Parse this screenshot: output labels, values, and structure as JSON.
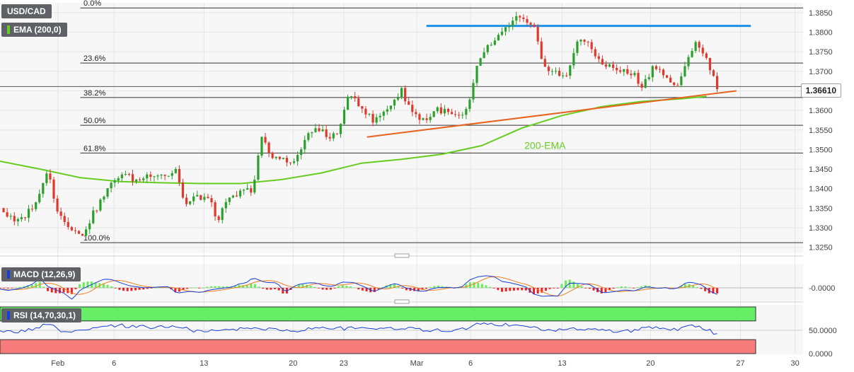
{
  "colors": {
    "background": "#ffffff",
    "panel_bg": "#f7f7f7",
    "grid": "#e6e6e6",
    "up": "#2ca02c",
    "down": "#e0392b",
    "ema": "#66cc22",
    "resistance": "#1e90e6",
    "trendline": "#e8641e",
    "fib": "#333333",
    "macd_line": "#1a3fd6",
    "signal_line": "#f08020",
    "hist_up": "#66ee55",
    "hist_down": "#ee2222",
    "rsi_line": "#1a3fd6",
    "rsi_overbought": "#66ee66",
    "rsi_oversold": "#f77b7b"
  },
  "legend": {
    "symbol": "USD/CAD",
    "ema": "EMA (200,0)",
    "macd": "MACD (12,26,9)",
    "rsi": "RSI (14,70,30,1)"
  },
  "current_price_label": "1.36610",
  "chart_data": [
    {
      "type": "candlestick",
      "title": "USD/CAD",
      "x_ticks": [
        "Feb",
        "6",
        "13",
        "20",
        "23",
        "Mar",
        "6",
        "13",
        "20",
        "27",
        "30"
      ],
      "y_ticks": [
        "1.3250",
        "1.3300",
        "1.3350",
        "1.3400",
        "1.3450",
        "1.3500",
        "1.3550",
        "1.3600",
        "1.3650",
        "1.3700",
        "1.3750",
        "1.3800",
        "1.3850"
      ],
      "ylim": [
        1.3235,
        1.3875
      ],
      "current_price": 1.3661,
      "fibonacci": [
        {
          "label": "0.0%",
          "value": 1.3862
        },
        {
          "label": "23.6%",
          "value": 1.3721
        },
        {
          "label": "38.2%",
          "value": 1.3633
        },
        {
          "label": "50.0%",
          "value": 1.3562
        },
        {
          "label": "61.8%",
          "value": 1.3491
        },
        {
          "label": "100.0%",
          "value": 1.3262
        }
      ],
      "resistance": {
        "value": 1.3816,
        "from": 0.531,
        "to": 0.935
      },
      "trendline": {
        "from": [
          0.457,
          1.3532
        ],
        "to": [
          0.917,
          1.365
        ]
      },
      "annotation": "200-EMA",
      "ema_points": [
        [
          0.0,
          1.347
        ],
        [
          0.05,
          1.345
        ],
        [
          0.1,
          1.3428
        ],
        [
          0.15,
          1.3418
        ],
        [
          0.2,
          1.3415
        ],
        [
          0.25,
          1.3413
        ],
        [
          0.3,
          1.3413
        ],
        [
          0.35,
          1.3423
        ],
        [
          0.4,
          1.344
        ],
        [
          0.45,
          1.3465
        ],
        [
          0.5,
          1.3475
        ],
        [
          0.55,
          1.3488
        ],
        [
          0.6,
          1.351
        ],
        [
          0.65,
          1.3555
        ],
        [
          0.7,
          1.3587
        ],
        [
          0.75,
          1.361
        ],
        [
          0.8,
          1.3623
        ],
        [
          0.85,
          1.363
        ],
        [
          0.88,
          1.3636
        ]
      ],
      "price_path": [
        [
          0.0,
          1.335
        ],
        [
          0.02,
          1.331
        ],
        [
          0.035,
          1.334
        ],
        [
          0.05,
          1.3385
        ],
        [
          0.06,
          1.346
        ],
        [
          0.07,
          1.3345
        ],
        [
          0.085,
          1.331
        ],
        [
          0.1,
          1.3275
        ],
        [
          0.12,
          1.335
        ],
        [
          0.135,
          1.34
        ],
        [
          0.15,
          1.344
        ],
        [
          0.17,
          1.342
        ],
        [
          0.19,
          1.344
        ],
        [
          0.21,
          1.3435
        ],
        [
          0.22,
          1.345
        ],
        [
          0.23,
          1.3355
        ],
        [
          0.245,
          1.338
        ],
        [
          0.26,
          1.3375
        ],
        [
          0.27,
          1.332
        ],
        [
          0.285,
          1.337
        ],
        [
          0.3,
          1.339
        ],
        [
          0.315,
          1.34
        ],
        [
          0.325,
          1.353
        ],
        [
          0.34,
          1.3475
        ],
        [
          0.355,
          1.348
        ],
        [
          0.365,
          1.346
        ],
        [
          0.38,
          1.3525
        ],
        [
          0.395,
          1.356
        ],
        [
          0.41,
          1.3525
        ],
        [
          0.425,
          1.356
        ],
        [
          0.435,
          1.365
        ],
        [
          0.45,
          1.361
        ],
        [
          0.465,
          1.357
        ],
        [
          0.48,
          1.36
        ],
        [
          0.5,
          1.365
        ],
        [
          0.515,
          1.359
        ],
        [
          0.53,
          1.3575
        ],
        [
          0.545,
          1.3605
        ],
        [
          0.56,
          1.359
        ],
        [
          0.575,
          1.358
        ],
        [
          0.585,
          1.362
        ],
        [
          0.595,
          1.372
        ],
        [
          0.605,
          1.376
        ],
        [
          0.615,
          1.377
        ],
        [
          0.63,
          1.381
        ],
        [
          0.645,
          1.384
        ],
        [
          0.655,
          1.382
        ],
        [
          0.665,
          1.381
        ],
        [
          0.675,
          1.372
        ],
        [
          0.69,
          1.37
        ],
        [
          0.705,
          1.368
        ],
        [
          0.72,
          1.379
        ],
        [
          0.735,
          1.376
        ],
        [
          0.745,
          1.373
        ],
        [
          0.76,
          1.371
        ],
        [
          0.775,
          1.37
        ],
        [
          0.79,
          1.369
        ],
        [
          0.8,
          1.366
        ],
        [
          0.815,
          1.372
        ],
        [
          0.83,
          1.368
        ],
        [
          0.845,
          1.366
        ],
        [
          0.855,
          1.372
        ],
        [
          0.865,
          1.378
        ],
        [
          0.875,
          1.375
        ],
        [
          0.885,
          1.37
        ],
        [
          0.893,
          1.3663
        ]
      ]
    },
    {
      "type": "line",
      "title": "MACD (12,26,9)",
      "y_ticks": [
        "-0.0000"
      ],
      "series": [
        {
          "name": "MACD"
        },
        {
          "name": "Signal"
        },
        {
          "name": "Histogram"
        }
      ]
    },
    {
      "type": "line",
      "title": "RSI (14,70,30,1)",
      "y_ticks": [
        "50.0000",
        "0.0000"
      ],
      "ylim": [
        0,
        100
      ],
      "overbought": 70,
      "oversold": 30,
      "rsi_points": [
        [
          0.0,
          46
        ],
        [
          0.03,
          48
        ],
        [
          0.06,
          63
        ],
        [
          0.08,
          45
        ],
        [
          0.1,
          47
        ],
        [
          0.12,
          55
        ],
        [
          0.15,
          60
        ],
        [
          0.18,
          57
        ],
        [
          0.22,
          58
        ],
        [
          0.25,
          46
        ],
        [
          0.28,
          50
        ],
        [
          0.31,
          55
        ],
        [
          0.34,
          52
        ],
        [
          0.37,
          49
        ],
        [
          0.4,
          57
        ],
        [
          0.43,
          53
        ],
        [
          0.46,
          56
        ],
        [
          0.49,
          55
        ],
        [
          0.52,
          52
        ],
        [
          0.55,
          49
        ],
        [
          0.58,
          54
        ],
        [
          0.6,
          65
        ],
        [
          0.63,
          62
        ],
        [
          0.66,
          56
        ],
        [
          0.69,
          49
        ],
        [
          0.72,
          53
        ],
        [
          0.75,
          50
        ],
        [
          0.78,
          48
        ],
        [
          0.81,
          55
        ],
        [
          0.84,
          51
        ],
        [
          0.86,
          62
        ],
        [
          0.875,
          55
        ],
        [
          0.893,
          42
        ]
      ]
    }
  ]
}
